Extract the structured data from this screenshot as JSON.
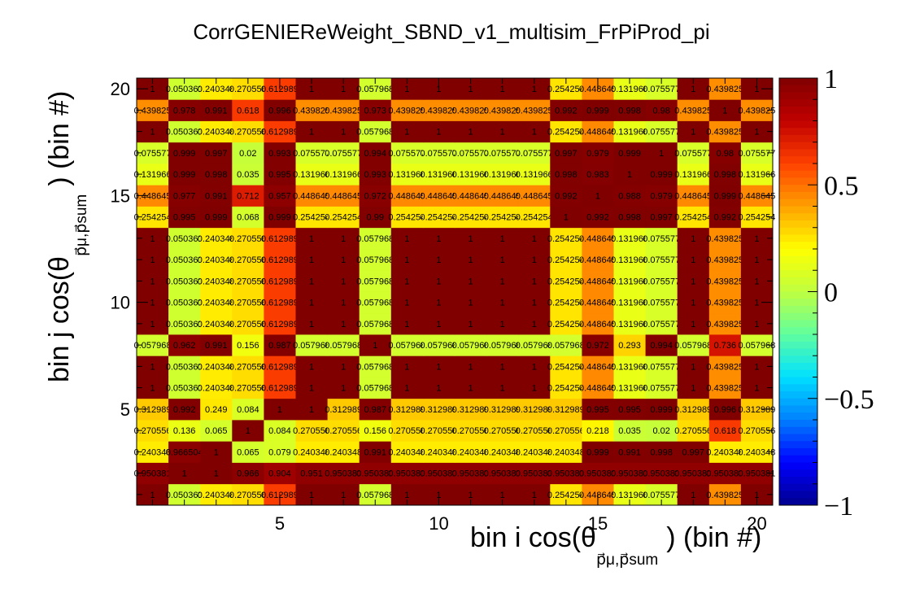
{
  "chart_data": {
    "type": "heatmap",
    "title": "CorrGENIEReWeight_SBND_v1_multisim_FrPiProd_pi",
    "xlabel": {
      "main": "bin i cos(θ",
      "sub": "p⃗μ,p⃗sum",
      "tail": ") (bin #)"
    },
    "ylabel": {
      "main": "bin j cos(θ",
      "sub": "p⃗μ,p⃗sum",
      "tail": ") (bin #)"
    },
    "xlim": [
      0.5,
      20.5
    ],
    "ylim": [
      0.5,
      20.5
    ],
    "x_ticks": [
      "5",
      "10",
      "15",
      "20"
    ],
    "y_ticks": [
      "5",
      "10",
      "15",
      "20"
    ],
    "zlim": [
      -1,
      1
    ],
    "z_ticks": [
      "1",
      "0.5",
      "0",
      "−0.5",
      "−1"
    ],
    "colormap": [
      "#00008f",
      "#0000ff",
      "#0080ff",
      "#00e0ff",
      "#60ff9f",
      "#c0ff40",
      "#ffff00",
      "#ffa000",
      "#ff4000",
      "#c00000",
      "#800000"
    ],
    "bins_per_axis": 20,
    "row_pattern_note": "",
    "rows": {
      "1": [
        1,
        0.050361,
        0.240348,
        0.270556,
        0.612989,
        1,
        1,
        0.057968,
        1,
        1,
        1,
        1,
        1,
        0.254254,
        0.448645,
        0.131966,
        0.075577,
        1,
        0.439825,
        1
      ],
      "2": [
        0.950381,
        1,
        1,
        0.966,
        0.904,
        0.951,
        0.950381,
        0.950381,
        0.950381,
        0.950381,
        0.950381,
        0.950381,
        0.950381,
        0.950381,
        0.950381,
        0.950381,
        0.950381,
        0.950381,
        0.950381,
        0.950381
      ],
      "3": [
        0.240348,
        0.966504,
        1,
        0.065,
        0.079,
        0.240348,
        0.240348,
        0.991,
        0.240348,
        0.240348,
        0.240348,
        0.240348,
        0.240348,
        0.240348,
        0.999,
        0.991,
        0.998,
        0.997,
        0.240348,
        0.240348
      ],
      "4": [
        0.270556,
        0.136,
        0.065,
        1,
        0.084,
        0.270556,
        0.270556,
        0.156,
        0.270556,
        0.270556,
        0.270556,
        0.270556,
        0.270556,
        0.270556,
        0.218,
        0.035,
        0.02,
        0.270556,
        0.618,
        0.270556
      ],
      "5": [
        0.312989,
        0.992,
        0.249,
        0.084,
        1,
        1,
        0.312989,
        0.987,
        0.312989,
        0.312989,
        0.312989,
        0.312989,
        0.312989,
        0.312989,
        0.995,
        0.995,
        0.999,
        0.312989,
        0.996,
        0.312989
      ],
      "6": [
        1,
        0.050361,
        0.240348,
        0.270556,
        0.612989,
        1,
        1,
        0.057968,
        1,
        1,
        1,
        1,
        1,
        0.254254,
        0.448645,
        0.131966,
        0.075577,
        1,
        0.439825,
        1
      ],
      "7": [
        1,
        0.050361,
        0.240348,
        0.270556,
        0.612989,
        1,
        1,
        0.057968,
        1,
        1,
        1,
        1,
        1,
        0.254254,
        0.448645,
        0.131966,
        0.075577,
        1,
        0.439825,
        1
      ],
      "8": [
        0.057968,
        0.962,
        0.991,
        0.156,
        0.987,
        0.057968,
        0.057968,
        1,
        0.057968,
        0.057968,
        0.057968,
        0.057968,
        0.057968,
        0.057968,
        0.972,
        0.293,
        0.994,
        0.057968,
        0.736,
        0.057968
      ],
      "9": [
        1,
        0.050361,
        0.240348,
        0.270556,
        0.612989,
        1,
        1,
        0.057968,
        1,
        1,
        1,
        1,
        1,
        0.254254,
        0.448645,
        0.131966,
        0.075577,
        1,
        0.439825,
        1
      ],
      "10": [
        1,
        0.050361,
        0.240348,
        0.270556,
        0.612989,
        1,
        1,
        0.057968,
        1,
        1,
        1,
        1,
        1,
        0.254254,
        0.448645,
        0.131966,
        0.075577,
        1,
        0.439825,
        1
      ],
      "11": [
        1,
        0.050361,
        0.240348,
        0.270556,
        0.612989,
        1,
        1,
        0.057968,
        1,
        1,
        1,
        1,
        1,
        0.254254,
        0.448645,
        0.131966,
        0.075577,
        1,
        0.439825,
        1
      ],
      "12": [
        1,
        0.050361,
        0.240348,
        0.270556,
        0.612989,
        1,
        1,
        0.057968,
        1,
        1,
        1,
        1,
        1,
        0.254254,
        0.448645,
        0.131966,
        0.075577,
        1,
        0.439825,
        1
      ],
      "13": [
        1,
        0.050361,
        0.240348,
        0.270556,
        0.612989,
        1,
        1,
        0.057968,
        1,
        1,
        1,
        1,
        1,
        0.254254,
        0.448645,
        0.131966,
        0.075577,
        1,
        0.439825,
        1
      ],
      "14": [
        0.254254,
        0.995,
        0.999,
        0.068,
        0.999,
        0.254254,
        0.254254,
        0.99,
        0.254254,
        0.254254,
        0.254254,
        0.254254,
        0.254254,
        1,
        0.992,
        0.998,
        0.997,
        0.254254,
        0.992,
        0.254254
      ],
      "15": [
        0.448645,
        0.977,
        0.991,
        0.712,
        0.957,
        0.448645,
        0.448645,
        0.972,
        0.448645,
        0.448645,
        0.448645,
        0.448645,
        0.448645,
        0.992,
        1,
        0.988,
        0.979,
        0.448645,
        0.999,
        0.448645
      ],
      "16": [
        0.131966,
        0.999,
        0.998,
        0.035,
        0.995,
        0.131966,
        0.131966,
        0.993,
        0.131966,
        0.131966,
        0.131966,
        0.131966,
        0.131966,
        0.998,
        0.983,
        1,
        0.999,
        0.131966,
        0.998,
        0.131966
      ],
      "17": [
        0.075577,
        0.999,
        0.997,
        0.02,
        0.993,
        0.075577,
        0.075577,
        0.994,
        0.075577,
        0.075577,
        0.075577,
        0.075577,
        0.075577,
        0.997,
        0.979,
        0.999,
        1,
        0.075577,
        0.98,
        0.075577
      ],
      "18": [
        1,
        0.050361,
        0.240348,
        0.270556,
        0.612989,
        1,
        1,
        0.057968,
        1,
        1,
        1,
        1,
        1,
        0.254254,
        0.448645,
        0.131966,
        0.075577,
        1,
        0.439825,
        1
      ],
      "19": [
        0.439825,
        0.978,
        0.991,
        0.618,
        0.996,
        0.439825,
        0.439825,
        0.973,
        0.439825,
        0.439825,
        0.439825,
        0.439825,
        0.439825,
        0.992,
        0.999,
        0.998,
        0.98,
        0.439825,
        1,
        0.439825
      ],
      "20": [
        1,
        0.050361,
        0.240348,
        0.270556,
        0.612989,
        1,
        1,
        0.057968,
        1,
        1,
        1,
        1,
        1,
        0.254254,
        0.448645,
        0.131966,
        0.075577,
        1,
        0.439825,
        1
      ]
    }
  }
}
